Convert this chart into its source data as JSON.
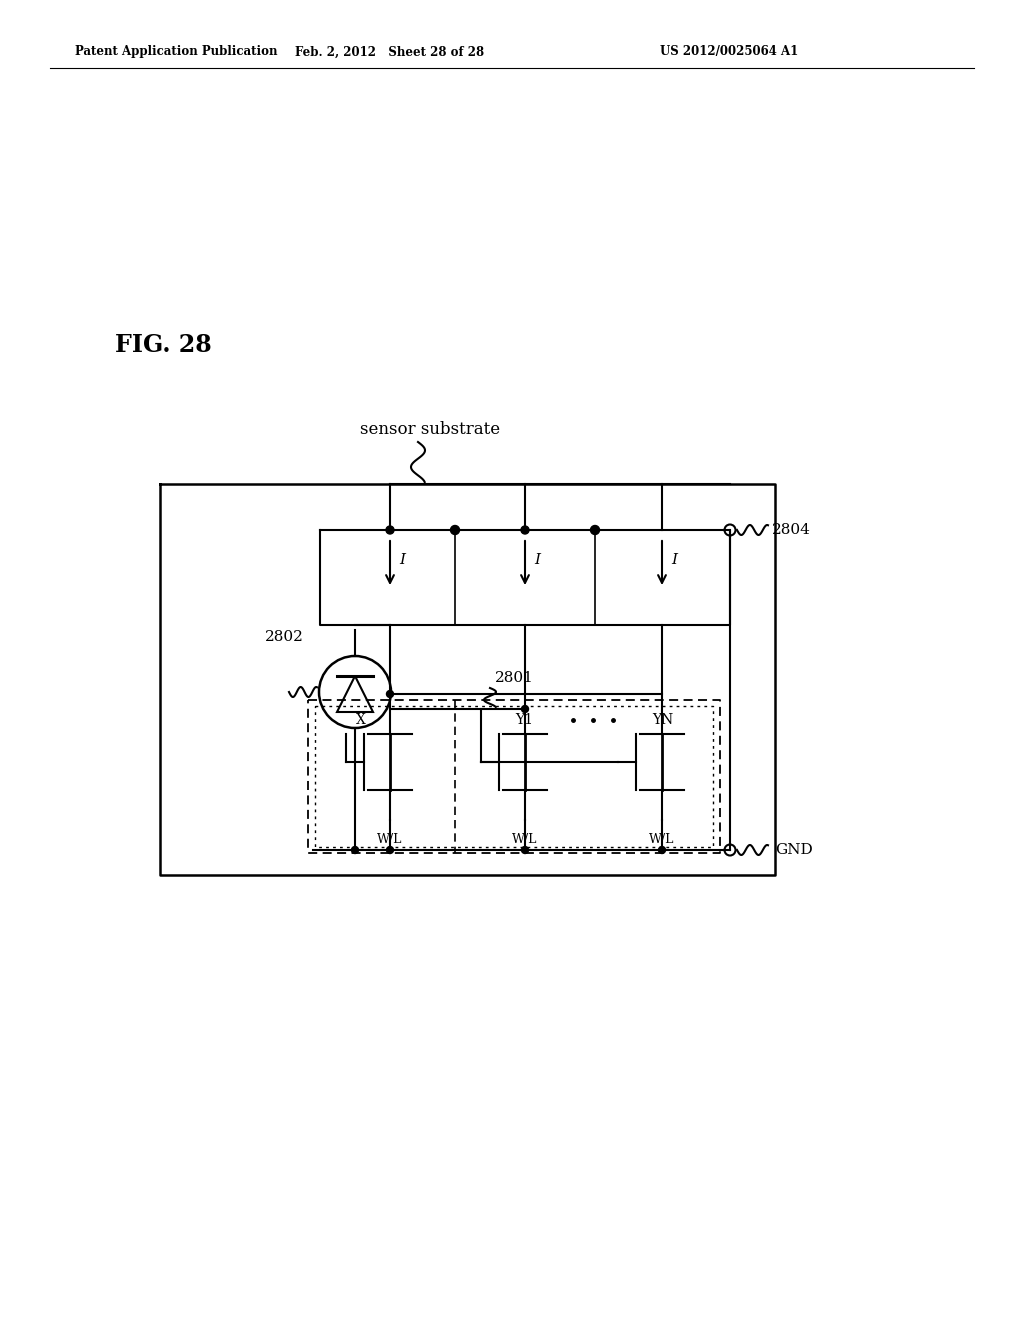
{
  "title": "FIG. 28",
  "header_left": "Patent Application Publication",
  "header_mid": "Feb. 2, 2012   Sheet 28 of 28",
  "header_right": "US 2012/0025064 A1",
  "label_sensor_substrate": "sensor substrate",
  "label_2801": "2801",
  "label_2802": "2802",
  "label_2804": "2804",
  "label_gnd": "GND",
  "label_I": "I",
  "label_X": "X",
  "label_Y1": "Y1",
  "label_YN": "YN",
  "label_WL": "W/L",
  "label_dots": "......",
  "bg_color": "#ffffff",
  "line_color": "#000000",
  "fig_width": 10.24,
  "fig_height": 13.2,
  "dpi": 100
}
